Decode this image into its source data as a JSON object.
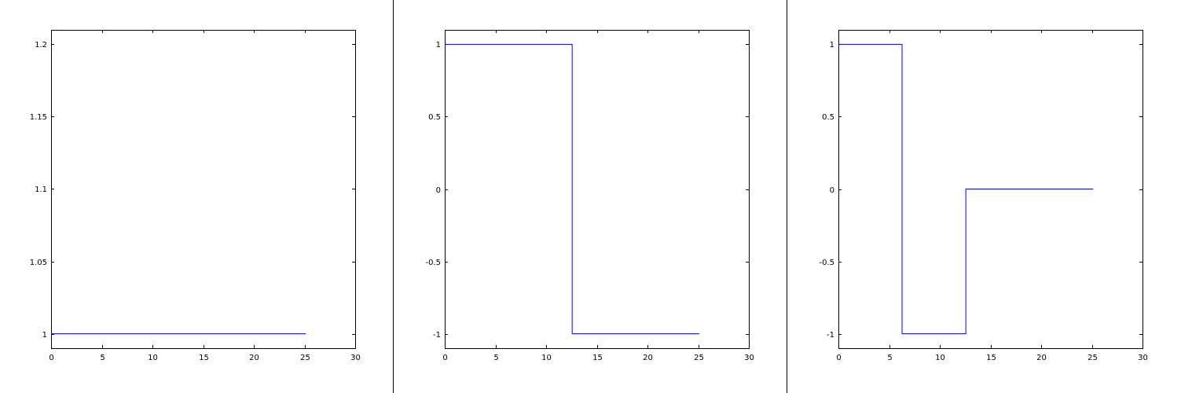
{
  "colors": {
    "background": "#ffffff",
    "axes": "#000000",
    "line": "#0000ff",
    "separator": "#000000"
  },
  "chart_data": [
    {
      "type": "line",
      "title": "",
      "xlabel": "",
      "ylabel": "",
      "grid": false,
      "xlim": [
        0,
        30
      ],
      "ylim": [
        0.99,
        1.21
      ],
      "xticks": [
        0,
        5,
        10,
        15,
        20,
        25,
        30
      ],
      "xtick_labels": [
        "0",
        "5",
        "10",
        "15",
        "20",
        "25",
        "30"
      ],
      "yticks": [
        1,
        1.05,
        1.1,
        1.15,
        1.2
      ],
      "ytick_labels": [
        "1",
        "1.05",
        "1.1",
        "1.15",
        "1.2"
      ],
      "series": [
        {
          "x": [
            0,
            25.13
          ],
          "y": [
            1,
            1
          ]
        }
      ]
    },
    {
      "type": "line",
      "title": "",
      "xlabel": "",
      "ylabel": "",
      "grid": false,
      "xlim": [
        0,
        30
      ],
      "ylim": [
        -1.1,
        1.1
      ],
      "xticks": [
        0,
        5,
        10,
        15,
        20,
        25,
        30
      ],
      "xtick_labels": [
        "0",
        "5",
        "10",
        "15",
        "20",
        "25",
        "30"
      ],
      "yticks": [
        -1,
        -0.5,
        0,
        0.5,
        1
      ],
      "ytick_labels": [
        "-1",
        "-0.5",
        "0",
        "0.5",
        "1"
      ],
      "series": [
        {
          "x": [
            0,
            12.57,
            12.57,
            25.13
          ],
          "y": [
            1,
            1,
            -1,
            -1
          ]
        }
      ]
    },
    {
      "type": "line",
      "title": "",
      "xlabel": "",
      "ylabel": "",
      "grid": false,
      "xlim": [
        0,
        30
      ],
      "ylim": [
        -1.1,
        1.1
      ],
      "xticks": [
        0,
        5,
        10,
        15,
        20,
        25,
        30
      ],
      "xtick_labels": [
        "0",
        "5",
        "10",
        "15",
        "20",
        "25",
        "30"
      ],
      "yticks": [
        -1,
        -0.5,
        0,
        0.5,
        1
      ],
      "ytick_labels": [
        "-1",
        "-0.5",
        "0",
        "0.5",
        "1"
      ],
      "series": [
        {
          "x": [
            0,
            6.28,
            6.28,
            12.57,
            12.57,
            25.13
          ],
          "y": [
            1,
            1,
            -1,
            -1,
            0,
            0
          ]
        }
      ]
    }
  ]
}
